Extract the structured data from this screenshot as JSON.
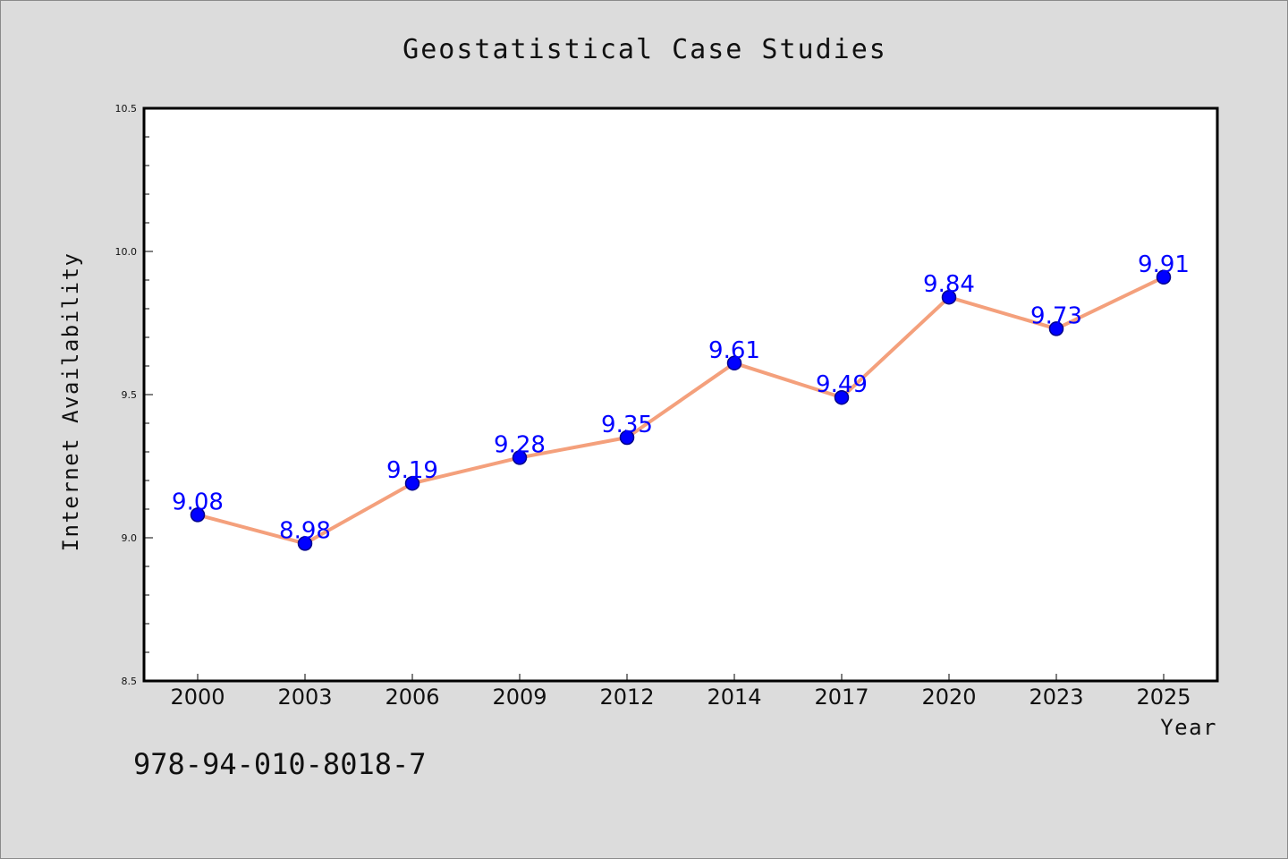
{
  "colors": {
    "page_background": "#dcdcdc",
    "plot_background": "#ffffff",
    "line": "#f4a07c",
    "marker_fill": "#0000ff",
    "marker_edge": "#00008b",
    "data_label": "#0000ff"
  },
  "footer": {
    "code": "978-94-010-8018-7"
  },
  "chart_data": {
    "type": "line",
    "title": "Geostatistical Case Studies",
    "xlabel": "Year",
    "ylabel": "Internet Availability",
    "categories": [
      "2000",
      "2003",
      "2006",
      "2009",
      "2012",
      "2014",
      "2017",
      "2020",
      "2023",
      "2025"
    ],
    "series": [
      {
        "values": [
          9.08,
          8.98,
          9.19,
          9.28,
          9.35,
          9.61,
          9.49,
          9.84,
          9.73,
          9.91
        ],
        "data_labels": [
          "9.08",
          "8.98",
          "9.19",
          "9.28",
          "9.35",
          "9.61",
          "9.49",
          "9.84",
          "9.73",
          "9.91"
        ]
      }
    ],
    "ylim": [
      8.5,
      10.5
    ],
    "yticks": [
      "8.5",
      "9.0",
      "9.5",
      "10.0",
      "10.5"
    ],
    "grid": false,
    "legend": "none",
    "markers": true
  }
}
